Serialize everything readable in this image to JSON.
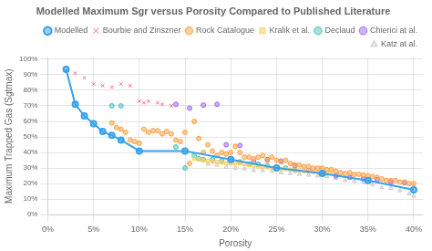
{
  "chart_data": {
    "type": "scatter",
    "title": "Modelled Maximum Sgr versus Porosity Compared to Published Literature",
    "xlabel": "Porosity",
    "ylabel": "Maximum Trapped Gas (Sgtmax)",
    "xlim": [
      0,
      0.41
    ],
    "ylim": [
      0,
      1.01
    ],
    "xticks": [
      {
        "value": 0,
        "label": "0%"
      },
      {
        "value": 0.05,
        "label": "5%"
      },
      {
        "value": 0.1,
        "label": "10%"
      },
      {
        "value": 0.15,
        "label": "15%"
      },
      {
        "value": 0.2,
        "label": "20%"
      },
      {
        "value": 0.25,
        "label": "25%"
      },
      {
        "value": 0.3,
        "label": "30%"
      },
      {
        "value": 0.35,
        "label": "35%"
      },
      {
        "value": 0.4,
        "label": "40%"
      }
    ],
    "yticks": [
      {
        "value": 0,
        "label": "0%"
      },
      {
        "value": 0.1,
        "label": "10%"
      },
      {
        "value": 0.2,
        "label": "20%"
      },
      {
        "value": 0.3,
        "label": "30%"
      },
      {
        "value": 0.4,
        "label": "40%"
      },
      {
        "value": 0.5,
        "label": "50%"
      },
      {
        "value": 0.6,
        "label": "60%"
      },
      {
        "value": 0.7,
        "label": "70%"
      },
      {
        "value": 0.8,
        "label": "80%"
      },
      {
        "value": 0.9,
        "label": "90%"
      },
      {
        "value": 1.0,
        "label": "100%"
      }
    ],
    "grid": true,
    "legend": "upper right",
    "series": [
      {
        "name": "Modelled",
        "type": "line",
        "marker": "circle",
        "x": [
          0.02,
          0.03,
          0.04,
          0.05,
          0.06,
          0.07,
          0.08,
          0.1,
          0.15,
          0.2,
          0.25,
          0.3,
          0.35,
          0.4
        ],
        "values": [
          0.935,
          0.71,
          0.635,
          0.585,
          0.535,
          0.51,
          0.48,
          0.41,
          0.41,
          0.355,
          0.3,
          0.265,
          0.22,
          0.16
        ]
      },
      {
        "name": "Bourbie and Zinszner",
        "type": "scatter",
        "marker": "x",
        "x": [
          0.02,
          0.03,
          0.04,
          0.05,
          0.06,
          0.07,
          0.08,
          0.09,
          0.1,
          0.105,
          0.11,
          0.12,
          0.125,
          0.135
        ],
        "values": [
          0.93,
          0.91,
          0.88,
          0.84,
          0.83,
          0.82,
          0.84,
          0.83,
          0.73,
          0.72,
          0.73,
          0.72,
          0.71,
          0.7
        ]
      },
      {
        "name": "Rock Catalogue",
        "type": "scatter",
        "marker": "circle",
        "x": [
          0.07,
          0.075,
          0.08,
          0.085,
          0.09,
          0.095,
          0.1,
          0.105,
          0.11,
          0.115,
          0.12,
          0.125,
          0.13,
          0.135,
          0.14,
          0.145,
          0.15,
          0.155,
          0.16,
          0.165,
          0.17,
          0.175,
          0.18,
          0.185,
          0.19,
          0.195,
          0.2,
          0.205,
          0.21,
          0.215,
          0.22,
          0.225,
          0.23,
          0.235,
          0.24,
          0.245,
          0.25,
          0.255,
          0.26,
          0.265,
          0.27,
          0.275,
          0.28,
          0.285,
          0.29,
          0.295,
          0.3,
          0.305,
          0.31,
          0.315,
          0.32,
          0.325,
          0.33,
          0.335,
          0.34,
          0.345,
          0.35,
          0.355,
          0.36,
          0.365,
          0.37,
          0.375,
          0.38,
          0.385,
          0.39,
          0.395,
          0.4
        ],
        "values": [
          0.59,
          0.56,
          0.55,
          0.53,
          0.48,
          0.47,
          0.46,
          0.55,
          0.53,
          0.54,
          0.54,
          0.52,
          0.535,
          0.52,
          0.48,
          0.47,
          0.53,
          0.33,
          0.6,
          0.49,
          0.4,
          0.45,
          0.41,
          0.38,
          0.4,
          0.39,
          0.4,
          0.44,
          0.4,
          0.37,
          0.37,
          0.36,
          0.37,
          0.38,
          0.35,
          0.37,
          0.35,
          0.34,
          0.35,
          0.33,
          0.32,
          0.32,
          0.31,
          0.31,
          0.3,
          0.3,
          0.3,
          0.29,
          0.29,
          0.28,
          0.27,
          0.265,
          0.27,
          0.26,
          0.26,
          0.255,
          0.25,
          0.245,
          0.24,
          0.23,
          0.22,
          0.22,
          0.22,
          0.21,
          0.21,
          0.2,
          0.2
        ]
      },
      {
        "name": "Kralik et al.",
        "type": "scatter",
        "marker": "square",
        "x": [
          0.16,
          0.165,
          0.17,
          0.175,
          0.18,
          0.185,
          0.19,
          0.195,
          0.2,
          0.205,
          0.21,
          0.215,
          0.22,
          0.225,
          0.23,
          0.235,
          0.24,
          0.245,
          0.25,
          0.255,
          0.26,
          0.265,
          0.27,
          0.275,
          0.28,
          0.285,
          0.29,
          0.295,
          0.3,
          0.305,
          0.31
        ],
        "values": [
          0.36,
          0.355,
          0.35,
          0.345,
          0.34,
          0.34,
          0.335,
          0.33,
          0.33,
          0.33,
          0.33,
          0.325,
          0.32,
          0.315,
          0.31,
          0.31,
          0.305,
          0.3,
          0.3,
          0.295,
          0.295,
          0.29,
          0.285,
          0.285,
          0.28,
          0.28,
          0.275,
          0.275,
          0.27,
          0.27,
          0.265
        ]
      },
      {
        "name": "Declaud",
        "type": "scatter",
        "marker": "circle",
        "x": [
          0.07,
          0.08,
          0.14,
          0.15,
          0.16,
          0.165,
          0.17,
          0.18,
          0.19,
          0.2,
          0.21,
          0.22,
          0.23,
          0.24,
          0.25,
          0.26,
          0.27
        ],
        "values": [
          0.7,
          0.7,
          0.435,
          0.3,
          0.38,
          0.36,
          0.355,
          0.355,
          0.345,
          0.345,
          0.34,
          0.325,
          0.325,
          0.315,
          0.3,
          0.3,
          0.285
        ]
      },
      {
        "name": "Chierici at al.",
        "type": "scatter",
        "marker": "circle",
        "x": [
          0.14,
          0.155,
          0.17,
          0.185,
          0.195,
          0.21,
          0.225,
          0.24,
          0.255,
          0.27,
          0.285,
          0.3,
          0.315,
          0.33,
          0.345,
          0.36,
          0.375,
          0.39
        ],
        "values": [
          0.71,
          0.685,
          0.705,
          0.71,
          0.45,
          0.445,
          0.34,
          0.355,
          0.345,
          0.315,
          0.285,
          0.265,
          0.25,
          0.24,
          0.23,
          0.225,
          0.21,
          0.205
        ]
      },
      {
        "name": "Katz at al.",
        "type": "scatter",
        "marker": "triangle",
        "x": [
          0.175,
          0.185,
          0.195,
          0.205,
          0.215,
          0.225,
          0.235,
          0.245,
          0.255,
          0.265,
          0.275,
          0.285,
          0.295,
          0.305,
          0.315,
          0.325,
          0.335,
          0.345,
          0.355,
          0.365,
          0.375,
          0.385,
          0.395,
          0.4
        ],
        "values": [
          0.325,
          0.32,
          0.305,
          0.3,
          0.295,
          0.285,
          0.285,
          0.28,
          0.27,
          0.265,
          0.26,
          0.255,
          0.25,
          0.245,
          0.235,
          0.22,
          0.215,
          0.21,
          0.195,
          0.175,
          0.17,
          0.155,
          0.135,
          0.12
        ]
      }
    ]
  }
}
